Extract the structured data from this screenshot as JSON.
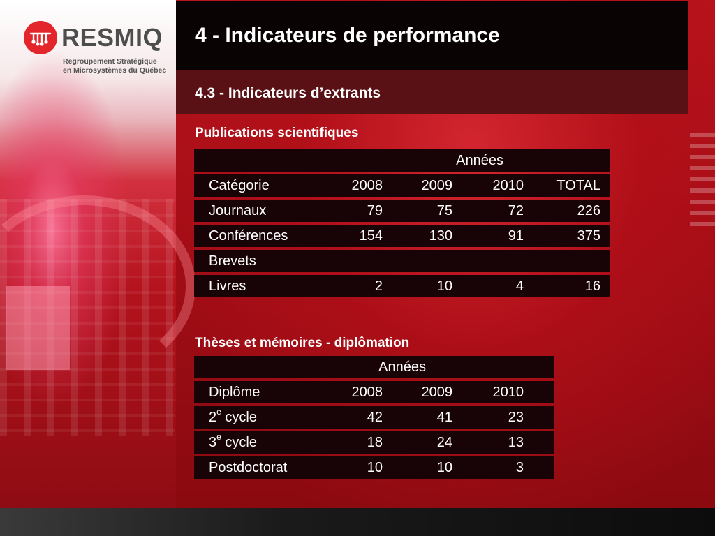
{
  "logo": {
    "word": "RESMIQ",
    "sub_line1": "Regroupement Stratégique",
    "sub_line2": "en Microsystèmes du Québec"
  },
  "header": {
    "title": "4 - Indicateurs de performance",
    "subtitle": "4.3 - Indicateurs d’extrants"
  },
  "publications": {
    "label": "Publications scientifiques",
    "years_header": "Années",
    "columns": [
      "Catégorie",
      "2008",
      "2009",
      "2010",
      "TOTAL"
    ],
    "rows": [
      {
        "name": "Journaux",
        "v2008": "79",
        "v2009": "75",
        "v2010": "72",
        "total": "226"
      },
      {
        "name": "Conférences",
        "v2008": "154",
        "v2009": "130",
        "v2010": "91",
        "total": "375"
      },
      {
        "name": "Brevets",
        "v2008": "",
        "v2009": "",
        "v2010": "",
        "total": ""
      },
      {
        "name": "Livres",
        "v2008": "2",
        "v2009": "10",
        "v2010": "4",
        "total": "16"
      }
    ]
  },
  "theses": {
    "label": "Thèses et mémoires - diplômation",
    "years_header": "Années",
    "columns": [
      "Diplôme",
      "2008",
      "2009",
      "2010"
    ],
    "rows": [
      {
        "prefix": "2",
        "sup": "e",
        "suffix": " cycle",
        "v2008": "42",
        "v2009": "41",
        "v2010": "23"
      },
      {
        "prefix": "3",
        "sup": "e",
        "suffix": " cycle",
        "v2008": "18",
        "v2009": "24",
        "v2010": "13"
      },
      {
        "prefix": "Postdoctorat",
        "sup": "",
        "suffix": "",
        "v2008": "10",
        "v2009": "10",
        "v2010": "3"
      }
    ]
  },
  "colors": {
    "background_red": "#a80f17",
    "title_band": "#0a0303",
    "subtitle_band": "#5a1115",
    "table_cell": "#180306",
    "logo_red": "#e3262b"
  }
}
